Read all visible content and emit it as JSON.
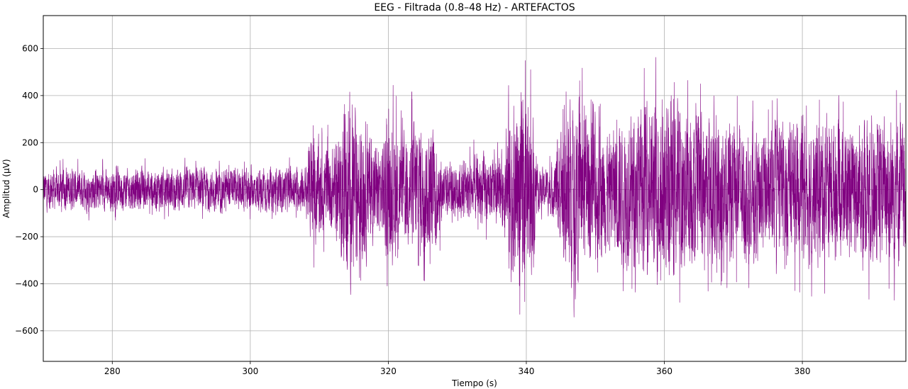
{
  "chart_data": {
    "type": "line",
    "title": "EEG - Filtrada (0.8–48 Hz) - ARTEFACTOS",
    "xlabel": "Tiempo (s)",
    "ylabel": "Amplitud (µV)",
    "xlim": [
      270,
      395
    ],
    "ylim": [
      -730,
      740
    ],
    "xticks": [
      280,
      300,
      320,
      340,
      360,
      380
    ],
    "xtick_labels": [
      "280",
      "300",
      "320",
      "340",
      "360",
      "380"
    ],
    "yticks": [
      -600,
      -400,
      -200,
      0,
      200,
      400,
      600
    ],
    "ytick_labels": [
      "−600",
      "−400",
      "−200",
      "0",
      "200",
      "400",
      "600"
    ],
    "grid": true,
    "series": [
      {
        "color": "#800080",
        "envelope": {
          "t": [
            270,
            280,
            290,
            300,
            305,
            308,
            309,
            310,
            312,
            313,
            314,
            314.5,
            315,
            316,
            317,
            318,
            319,
            320,
            321,
            322,
            323,
            324,
            325,
            326,
            327,
            328,
            330,
            333,
            336,
            337,
            337.5,
            338,
            339,
            340,
            341,
            341.5,
            342,
            344,
            345,
            345.5,
            346,
            348,
            350,
            352,
            354,
            356,
            358,
            360,
            362,
            364,
            366,
            368,
            370,
            372,
            374,
            376,
            378,
            380,
            382,
            384,
            386,
            388,
            390,
            392,
            394,
            395
          ],
          "amp": [
            130,
            130,
            135,
            130,
            135,
            140,
            380,
            300,
            260,
            380,
            550,
            580,
            560,
            500,
            400,
            300,
            300,
            430,
            450,
            320,
            380,
            470,
            430,
            380,
            350,
            180,
            180,
            220,
            200,
            250,
            660,
            560,
            600,
            560,
            480,
            150,
            120,
            180,
            380,
            550,
            560,
            520,
            460,
            380,
            470,
            500,
            540,
            600,
            560,
            480,
            470,
            480,
            470,
            420,
            400,
            390,
            420,
            440,
            460,
            440,
            400,
            400,
            480,
            450,
            480,
            420
          ]
        }
      }
    ]
  }
}
